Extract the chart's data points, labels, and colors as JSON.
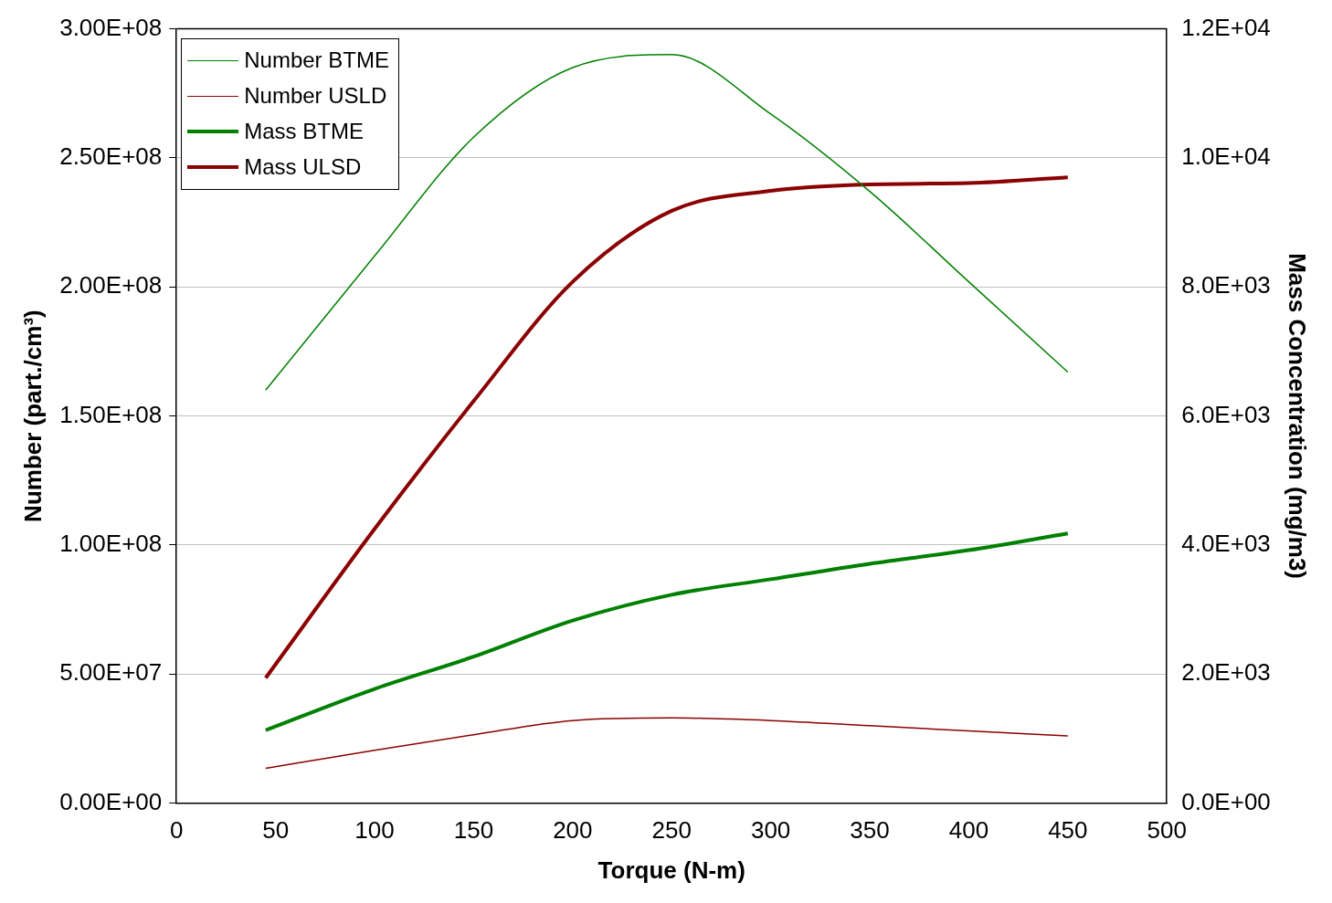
{
  "chart_data": {
    "type": "line",
    "xlabel": "Torque (N-m)",
    "ylabel": "Number (part./cm³)",
    "y2label": "Mass Concentration (mg/m3)",
    "xlim": [
      0,
      500
    ],
    "xticks": [
      0,
      50,
      100,
      150,
      200,
      250,
      300,
      350,
      400,
      450,
      500
    ],
    "ylim": [
      0,
      300000000
    ],
    "yticks": [
      {
        "value": 0,
        "label": "0.00E+00"
      },
      {
        "value": 50000000,
        "label": "5.00E+07"
      },
      {
        "value": 100000000,
        "label": "1.00E+08"
      },
      {
        "value": 150000000,
        "label": "1.50E+08"
      },
      {
        "value": 200000000,
        "label": "2.00E+08"
      },
      {
        "value": 250000000,
        "label": "2.50E+08"
      },
      {
        "value": 300000000,
        "label": "3.00E+08"
      }
    ],
    "y2lim": [
      0,
      12000
    ],
    "y2ticks": [
      {
        "value": 0,
        "label": "0.0E+00"
      },
      {
        "value": 2000,
        "label": "2.0E+03"
      },
      {
        "value": 4000,
        "label": "4.0E+03"
      },
      {
        "value": 6000,
        "label": "6.0E+03"
      },
      {
        "value": 8000,
        "label": "8.0E+03"
      },
      {
        "value": 10000,
        "label": "1.0E+04"
      },
      {
        "value": 12000,
        "label": "1.2E+04"
      }
    ],
    "x": [
      45,
      100,
      150,
      200,
      250,
      300,
      350,
      400,
      450
    ],
    "series": [
      {
        "name": "Number BTME",
        "color": "#008000",
        "values": [
          160000000,
          212000000,
          258000000,
          285000000,
          290000000,
          267000000,
          237000000,
          202000000,
          167000000
        ]
      },
      {
        "name": "Number USLD",
        "color": "#8b0000",
        "values": [
          13500000,
          20500000,
          26500000,
          32000000,
          33000000,
          32000000,
          30000000,
          28000000,
          26000000
        ]
      },
      {
        "name": "Mass BTME",
        "color": "#008000",
        "axis": "y2",
        "values": [
          1130,
          1770,
          2270,
          2830,
          3230,
          3470,
          3710,
          3920,
          4180
        ]
      },
      {
        "name": "Mass ULSD",
        "color": "#8b0000",
        "axis": "y2",
        "values": [
          1940,
          4250,
          6230,
          8080,
          9180,
          9490,
          9590,
          9610,
          9700
        ]
      }
    ],
    "grid": "y",
    "legend": "top left",
    "marker": "none",
    "line_style": "solid"
  }
}
